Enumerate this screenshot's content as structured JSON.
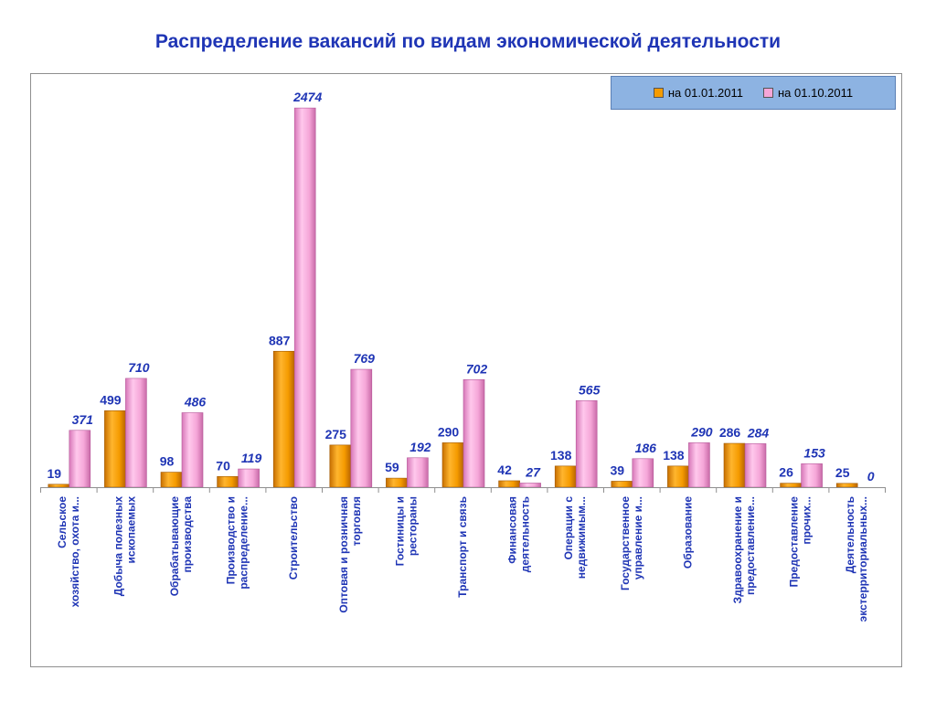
{
  "chart_data": {
    "type": "bar",
    "title": "Распределение вакансий  по видам экономической деятельности",
    "xlabel": "",
    "ylabel": "",
    "ylim": [
      0,
      2600
    ],
    "grid": false,
    "legend_position": "top-right",
    "categories": [
      [
        "Сельское",
        "хозяйство, охота и..."
      ],
      [
        "Добыча полезных",
        "ископаемых"
      ],
      [
        "Обрабатывающие",
        "производства"
      ],
      [
        "Производство и",
        "распределение..."
      ],
      [
        "Строительство"
      ],
      [
        "Оптовая и розничная",
        "торговля"
      ],
      [
        "Гостиницы и",
        "рестораны"
      ],
      [
        "Транспорт и связь"
      ],
      [
        "Финансовая",
        "деятельность"
      ],
      [
        "Операции с",
        "недвижимым..."
      ],
      [
        "Государственное",
        "управление и..."
      ],
      [
        "Образование"
      ],
      [
        "Здравоохранение и",
        "предоставление..."
      ],
      [
        "Предоставление",
        "прочих..."
      ],
      [
        "Деятельность",
        "экстерриториальных..."
      ]
    ],
    "series": [
      {
        "name": "на 01.01.2011",
        "color": "#f59b00",
        "label_color": "#1f35b5",
        "label_italic": false,
        "values": [
          19,
          499,
          98,
          70,
          887,
          275,
          59,
          290,
          42,
          138,
          39,
          138,
          286,
          26,
          25
        ]
      },
      {
        "name": "на 01.10.2011",
        "color": "#f5a6d8",
        "label_color": "#1f35b5",
        "label_italic": true,
        "values": [
          371,
          710,
          486,
          119,
          2474,
          769,
          192,
          702,
          27,
          565,
          186,
          290,
          284,
          153,
          0
        ]
      }
    ]
  }
}
